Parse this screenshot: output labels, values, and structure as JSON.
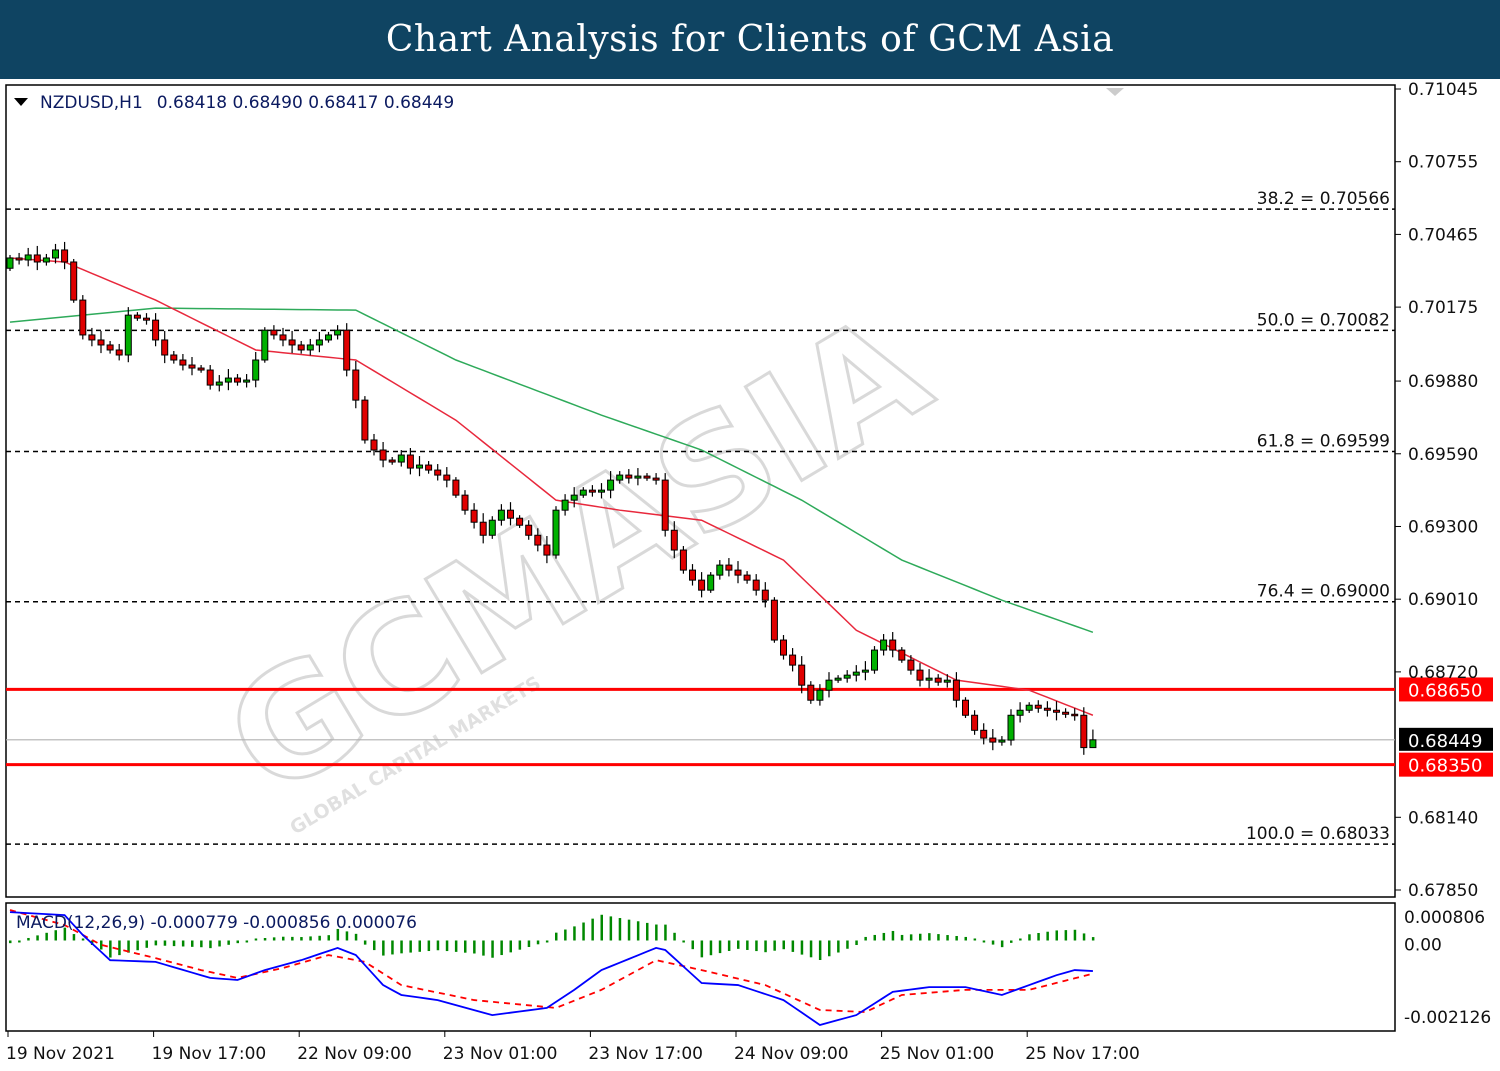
{
  "header": {
    "title": "Chart Analysis for Clients of GCM Asia"
  },
  "colors": {
    "header_bg": "#0f4462",
    "bull": "#00b000",
    "bear": "#e00000",
    "ma_fast": "#e8283c",
    "ma_slow": "#2eaa5a",
    "level": "#ff0000",
    "macd_main": "#0000ff",
    "macd_signal": "#ff0000",
    "macd_hist": "#008800"
  },
  "watermark": {
    "brand": "GCMASIA",
    "tagline": "GLOBAL CAPITAL MARKETS"
  },
  "chart_data": [
    {
      "type": "candlestick",
      "symbol_info": "NZDUSD,H1",
      "ohlc_info": "0.68418 0.68490 0.68417 0.68449",
      "last_bar": {
        "open": 0.68418,
        "high": 0.6849,
        "low": 0.68417,
        "close": 0.68449
      },
      "ylim": [
        0.6785,
        0.71045
      ],
      "y_ticks": [
        "0.71045",
        "0.70755",
        "0.70465",
        "0.70175",
        "0.69880",
        "0.69590",
        "0.69300",
        "0.69010",
        "0.68720",
        "0.68140",
        "0.67850"
      ],
      "x_ticks": [
        {
          "bar": 0,
          "label": "19 Nov 2021"
        },
        {
          "bar": 16,
          "label": "19 Nov 17:00"
        },
        {
          "bar": 32,
          "label": "22 Nov 09:00"
        },
        {
          "bar": 48,
          "label": "23 Nov 01:00"
        },
        {
          "bar": 64,
          "label": "23 Nov 17:00"
        },
        {
          "bar": 80,
          "label": "24 Nov 09:00"
        },
        {
          "bar": 96,
          "label": "25 Nov 01:00"
        },
        {
          "bar": 112,
          "label": "25 Nov 17:00"
        }
      ],
      "closes": [
        0.70371,
        0.70363,
        0.70383,
        0.70355,
        0.70371,
        0.70403,
        0.70355,
        0.70203,
        0.70064,
        0.70044,
        0.70024,
        0.70004,
        0.69984,
        0.70143,
        0.70131,
        0.70123,
        0.70044,
        0.69984,
        0.69964,
        0.69944,
        0.69932,
        0.69924,
        0.69864,
        0.69876,
        0.69892,
        0.69876,
        0.69884,
        0.69964,
        0.70083,
        0.70064,
        0.70044,
        0.70024,
        0.70004,
        0.70024,
        0.70044,
        0.70064,
        0.70083,
        0.69924,
        0.69804,
        0.69645,
        0.69605,
        0.69565,
        0.69557,
        0.69585,
        0.69533,
        0.69545,
        0.69525,
        0.69505,
        0.69485,
        0.69425,
        0.69365,
        0.69317,
        0.69265,
        0.69325,
        0.69365,
        0.69333,
        0.69305,
        0.69265,
        0.69226,
        0.69186,
        0.69365,
        0.69405,
        0.69425,
        0.69445,
        0.69437,
        0.69445,
        0.69485,
        0.69505,
        0.69493,
        0.69501,
        0.69493,
        0.69485,
        0.69285,
        0.69206,
        0.69126,
        0.69086,
        0.69046,
        0.69106,
        0.69146,
        0.69126,
        0.69106,
        0.69086,
        0.69046,
        0.69006,
        0.68847,
        0.68787,
        0.68747,
        0.68667,
        0.68607,
        0.68647,
        0.68687,
        0.68695,
        0.68707,
        0.68719,
        0.68727,
        0.68807,
        0.68847,
        0.68807,
        0.68767,
        0.68727,
        0.68687,
        0.68695,
        0.68679,
        0.68687,
        0.68607,
        0.68547,
        0.68487,
        0.68456,
        0.6844,
        0.68448,
        0.68547,
        0.68567,
        0.68587,
        0.68575,
        0.68567,
        0.68559,
        0.68551,
        0.68547,
        0.68418,
        0.68449
      ],
      "ma_fast": [
        [
          0,
          0.70371
        ],
        [
          6,
          0.70355
        ],
        [
          16,
          0.70203
        ],
        [
          27,
          0.70004
        ],
        [
          38,
          0.69964
        ],
        [
          49,
          0.69724
        ],
        [
          60,
          0.69405
        ],
        [
          67,
          0.69365
        ],
        [
          76,
          0.69325
        ],
        [
          85,
          0.69166
        ],
        [
          93,
          0.68886
        ],
        [
          104,
          0.68687
        ],
        [
          112,
          0.68647
        ],
        [
          119,
          0.68547
        ]
      ],
      "ma_slow": [
        [
          0,
          0.70115
        ],
        [
          16,
          0.70171
        ],
        [
          38,
          0.70163
        ],
        [
          49,
          0.69964
        ],
        [
          65,
          0.69744
        ],
        [
          76,
          0.69605
        ],
        [
          87,
          0.69405
        ],
        [
          98,
          0.69166
        ],
        [
          109,
          0.69006
        ],
        [
          119,
          0.68878
        ]
      ],
      "fibonacci": [
        {
          "label": "38.2 = 0.70566",
          "price": 0.70566
        },
        {
          "label": "50.0 = 0.70082",
          "price": 0.70082
        },
        {
          "label": "61.8 = 0.69599",
          "price": 0.69599
        },
        {
          "label": "76.4 = 0.69000",
          "price": 0.69
        },
        {
          "label": "100.0 = 0.68033",
          "price": 0.68033
        }
      ],
      "levels": [
        {
          "label": "0.68650",
          "price": 0.6865
        },
        {
          "label": "0.68350",
          "price": 0.6835
        }
      ],
      "current_price": {
        "label": "0.68449",
        "price": 0.68449
      }
    },
    {
      "type": "line",
      "indicator_info": "MACD(12,26,9) -0.000779 -0.000856 0.000076",
      "ylim": [
        -0.002126,
        0.000806
      ],
      "y_ticks": [
        "0.000806",
        "0.00",
        "-0.002126"
      ],
      "main": [
        [
          0,
          0.00095
        ],
        [
          6,
          0.00086
        ],
        [
          8,
          0.00028
        ],
        [
          11,
          -0.00046
        ],
        [
          16,
          -0.00051
        ],
        [
          22,
          -0.00098
        ],
        [
          25,
          -0.00104
        ],
        [
          28,
          -0.00075
        ],
        [
          32,
          -0.00046
        ],
        [
          36,
          -0.0001
        ],
        [
          38,
          -0.00031
        ],
        [
          41,
          -0.00119
        ],
        [
          43,
          -0.00148
        ],
        [
          47,
          -0.00163
        ],
        [
          53,
          -0.00207
        ],
        [
          59,
          -0.00186
        ],
        [
          62,
          -0.00133
        ],
        [
          65,
          -0.00075
        ],
        [
          71,
          -0.0001
        ],
        [
          72,
          -0.00016
        ],
        [
          76,
          -0.00113
        ],
        [
          80,
          -0.00119
        ],
        [
          85,
          -0.00163
        ],
        [
          89,
          -0.00236
        ],
        [
          93,
          -0.00207
        ],
        [
          97,
          -0.00139
        ],
        [
          101,
          -0.00125
        ],
        [
          105,
          -0.00125
        ],
        [
          109,
          -0.00148
        ],
        [
          115,
          -0.0009
        ],
        [
          117,
          -0.00075
        ],
        [
          119,
          -0.000779
        ]
      ],
      "signal": [
        [
          0,
          0.00101
        ],
        [
          6,
          0.00057
        ],
        [
          10,
          -1e-05
        ],
        [
          16,
          -0.0004
        ],
        [
          21,
          -0.00075
        ],
        [
          25,
          -0.00098
        ],
        [
          30,
          -0.00069
        ],
        [
          35,
          -0.00031
        ],
        [
          39,
          -0.00051
        ],
        [
          43,
          -0.00119
        ],
        [
          51,
          -0.00163
        ],
        [
          60,
          -0.00186
        ],
        [
          65,
          -0.00133
        ],
        [
          71,
          -0.00046
        ],
        [
          76,
          -0.00075
        ],
        [
          83,
          -0.00119
        ],
        [
          89,
          -0.00192
        ],
        [
          94,
          -0.00198
        ],
        [
          98,
          -0.00148
        ],
        [
          105,
          -0.00133
        ],
        [
          112,
          -0.00133
        ],
        [
          119,
          -0.000856
        ]
      ]
    }
  ]
}
